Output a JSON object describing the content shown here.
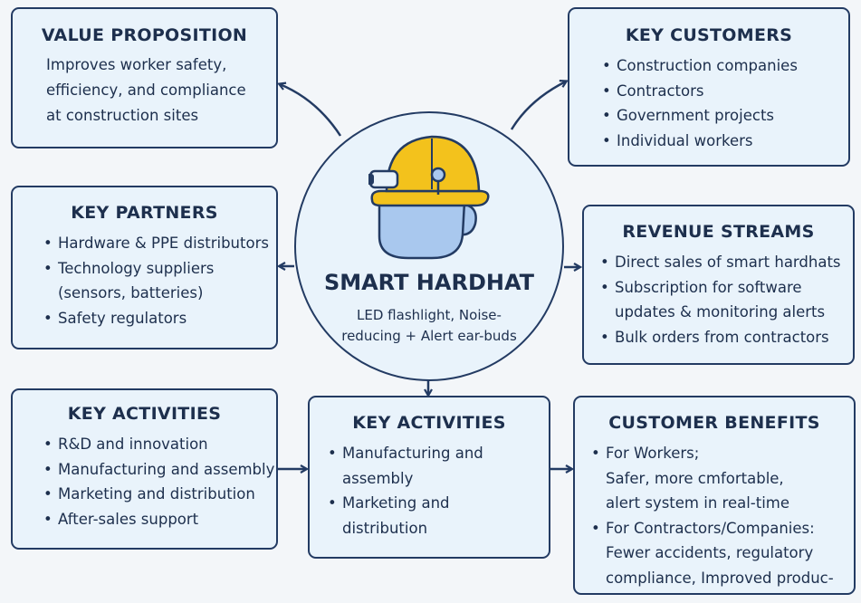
{
  "center": {
    "title": "SMART HARDHAT",
    "subtitle": "LED flashlight, Noise-reducing + Alert ear-buds",
    "icon": "hardhat-icon"
  },
  "value_proposition": {
    "title": "VALUE PROPOSITION",
    "lines": [
      "Improves worker safety,",
      "efficiency, and compliance",
      "at construction sites"
    ]
  },
  "key_customers": {
    "title": "KEY CUSTOMERS",
    "items": [
      "Construction companies",
      "Contractors",
      "Government projects",
      "Individual workers"
    ]
  },
  "key_partners": {
    "title": "KEY PARTNERS",
    "items": [
      [
        "Hardware & PPE distributors"
      ],
      [
        "Technology suppliers",
        "(sensors, batteries)"
      ],
      [
        "Safety regulators"
      ]
    ]
  },
  "revenue_streams": {
    "title": "REVENUE STREAMS",
    "items": [
      [
        "Direct sales of smart hardhats"
      ],
      [
        "Subscription for software",
        "updates & monitoring alerts"
      ],
      [
        "Bulk orders from contractors"
      ]
    ]
  },
  "key_activities_left": {
    "title": "KEY ACTIVITIES",
    "items": [
      "R&D and innovation",
      "Manufacturing and assembly",
      "Marketing and distribution",
      "After-sales support"
    ]
  },
  "key_activities_center": {
    "title": "KEY ACTIVITIES",
    "items": [
      [
        "Manufacturing and",
        "assembly"
      ],
      [
        "Marketing and",
        "distribution"
      ]
    ]
  },
  "customer_benefits": {
    "title": "CUSTOMER BENEFITS",
    "items": [
      [
        "For Workers;",
        "Safer, more cmfortable,",
        "alert system in real-time"
      ],
      [
        "For Contractors/Companies:",
        "Fewer accidents, regulatory",
        "compliance, Improved produc-"
      ]
    ]
  },
  "colors": {
    "border": "#233b63",
    "box_fill": "#e9f3fb",
    "helmet": "#f3c21c",
    "face": "#a9c8ee",
    "text": "#1d2f4d"
  }
}
